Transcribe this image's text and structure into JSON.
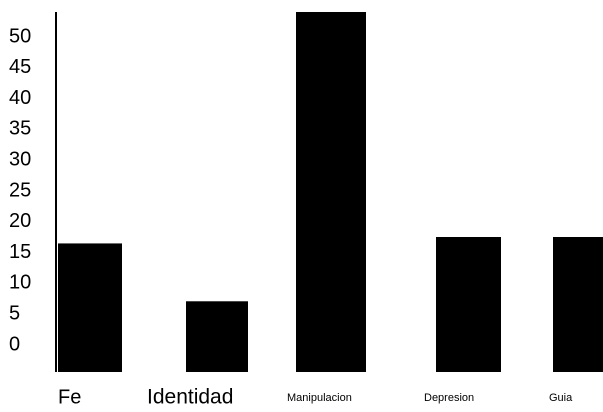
{
  "chart_data": {
    "type": "bar",
    "categories": [
      "Fe",
      "Identidad",
      "Manipulacion",
      "Depresion",
      "Guia"
    ],
    "values": [
      20,
      11,
      56,
      21,
      21
    ],
    "y_tick_labels": [
      "0",
      "5",
      "10",
      "15",
      "20",
      "25",
      "30",
      "35",
      "40",
      "45",
      "50"
    ],
    "y_ticks": [
      0,
      5,
      10,
      15,
      20,
      25,
      30,
      35,
      40,
      45,
      50
    ],
    "title": "",
    "xlabel": "",
    "ylabel": "",
    "grid": false,
    "legend": "none",
    "colors": {
      "bar": "#000000",
      "axis": "#000000",
      "background": "#ffffff"
    }
  }
}
